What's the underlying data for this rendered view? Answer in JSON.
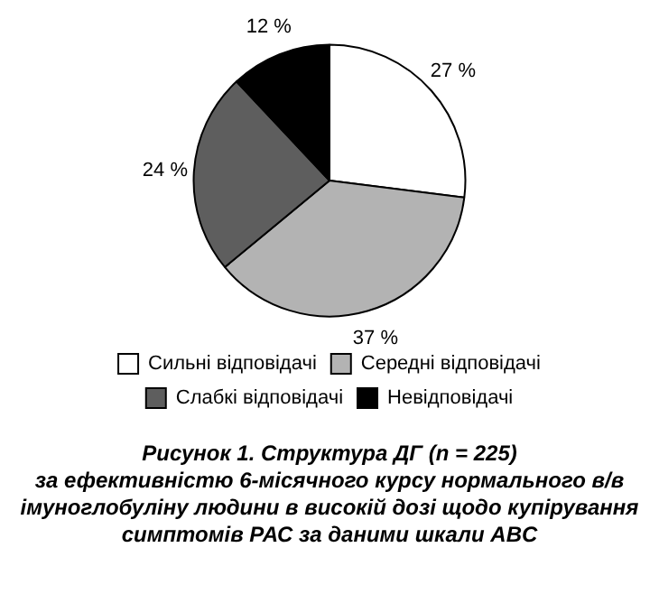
{
  "chart_data": {
    "type": "pie",
    "title": "Рисунок 1. Структура ДГ (n = 225)",
    "subtitle": "за ефективністю 6-місячного курсу нормального в/в імуноглобуліну людини в високій дозі щодо купірування симптомів РАС за даними шкали ABC",
    "categories": [
      "Сильні відповідачі",
      "Середні відповідачі",
      "Слабкі відповідачі",
      "Невідповідачі"
    ],
    "values": [
      27,
      37,
      24,
      12
    ],
    "colors": [
      "#ffffff",
      "#b3b3b3",
      "#5e5e5e",
      "#000000"
    ],
    "value_labels": [
      "27 %",
      "37 %",
      "24 %",
      "12 %"
    ],
    "legend": "bottom"
  }
}
